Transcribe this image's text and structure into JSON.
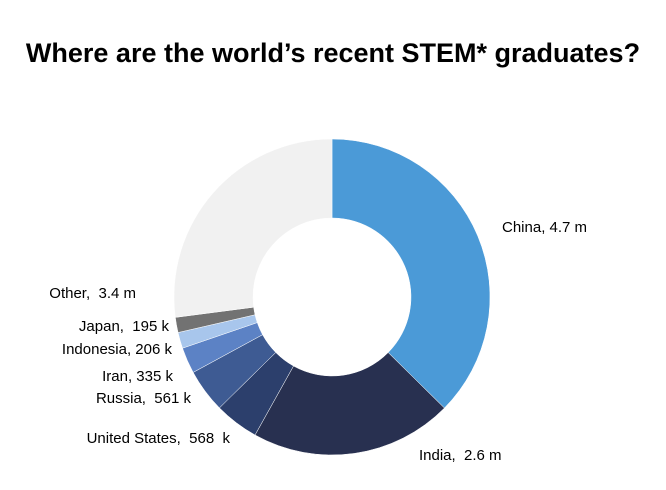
{
  "chart_data": {
    "type": "pie",
    "title": "Where are the world’s recent STEM* graduates?",
    "unit": "graduates",
    "slices": [
      {
        "label": "China, 4.7 m",
        "value": 4700000,
        "color": "#4b9ad7"
      },
      {
        "label": "India,  2.6 m",
        "value": 2600000,
        "color": "#283050"
      },
      {
        "label": "United States,  568  k",
        "value": 568000,
        "color": "#2c3f6c"
      },
      {
        "label": "Russia,  561 k",
        "value": 561000,
        "color": "#3e5b93"
      },
      {
        "label": "Iran, 335 k",
        "value": 335000,
        "color": "#5c82c5"
      },
      {
        "label": "Indonesia, 206 k",
        "value": 206000,
        "color": "#a8c6ec"
      },
      {
        "label": "Japan,  195 k",
        "value": 195000,
        "color": "#727272"
      },
      {
        "label": "Other,  3.4 m",
        "value": 3400000,
        "color": "#f1f1f1"
      }
    ],
    "legend": "none",
    "hole": "donut"
  }
}
